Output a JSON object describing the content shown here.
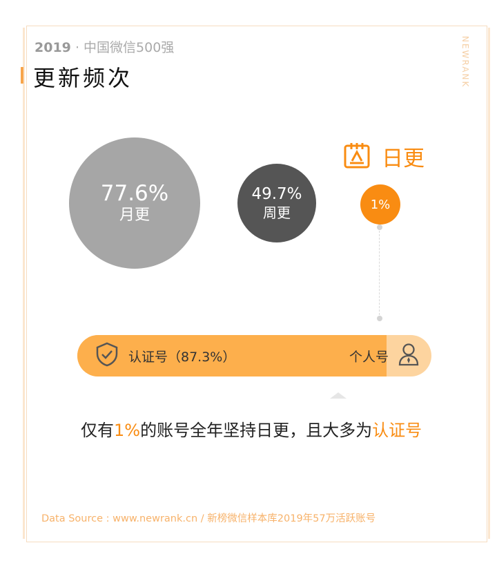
{
  "header": {
    "year": "2019",
    "separator": "·",
    "subtitle": "中国微信500强",
    "title": "更新频次",
    "brand": "NEWRANK"
  },
  "chart_data": {
    "type": "bubble",
    "series": [
      {
        "label": "月更",
        "value": 77.6,
        "display": "77.6%",
        "color": "#a6a6a6"
      },
      {
        "label": "周更",
        "value": 49.7,
        "display": "49.7%",
        "color": "#555555"
      },
      {
        "label": "日更",
        "value": 1,
        "display": "1%",
        "color": "#f98c12"
      }
    ],
    "daily_heading": "日更",
    "account_split": {
      "type": "bar",
      "categories": [
        "认证号",
        "个人号"
      ],
      "values": [
        87.3,
        12.7
      ],
      "certified_label": "认证号（87.3%）",
      "personal_label": "个人号",
      "colors": [
        "#fdaf4c",
        "#fdd49f"
      ]
    }
  },
  "caption": {
    "part1": "仅有",
    "highlight1": "1%",
    "part2": "的账号全年坚持日更，且大多为",
    "highlight2": "认证号"
  },
  "footer": {
    "source": "Data Source : www.newrank.cn   /   新榜微信样本库2019年57万活跃账号"
  },
  "icons": {
    "daily": "calendar-icon",
    "certified": "shield-check-icon",
    "personal": "person-icon"
  }
}
